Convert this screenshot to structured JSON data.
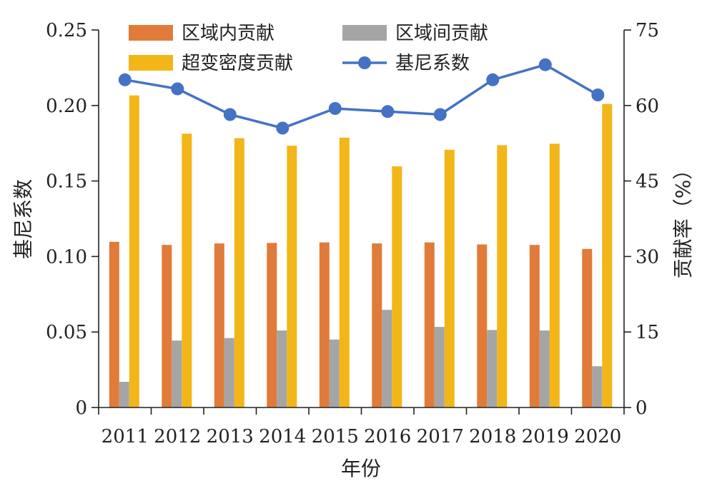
{
  "chart_data": {
    "type": "bar",
    "categories": [
      "2011",
      "2012",
      "2013",
      "2014",
      "2015",
      "2016",
      "2017",
      "2018",
      "2019",
      "2020"
    ],
    "series": [
      {
        "name": "区域内贡献",
        "axis": "right",
        "color": "#E07B39",
        "values": [
          32.9,
          32.3,
          32.6,
          32.7,
          32.8,
          32.6,
          32.8,
          32.4,
          32.3,
          31.5
        ]
      },
      {
        "name": "区域间贡献",
        "axis": "right",
        "color": "#A5A5A5",
        "values": [
          5.1,
          13.3,
          13.8,
          15.3,
          13.5,
          19.4,
          16.0,
          15.4,
          15.3,
          8.2
        ]
      },
      {
        "name": "超变密度贡献",
        "axis": "right",
        "color": "#F2B619",
        "values": [
          62.0,
          54.4,
          53.5,
          52.0,
          53.6,
          47.9,
          51.2,
          52.1,
          52.4,
          60.3
        ]
      },
      {
        "name": "基尼系数",
        "axis": "left",
        "type": "line",
        "color": "#4472C4",
        "values": [
          0.217,
          0.211,
          0.194,
          0.185,
          0.198,
          0.196,
          0.194,
          0.217,
          0.227,
          0.207
        ]
      }
    ],
    "xlabel": "年份",
    "ylabel": "基尼系数",
    "y2label": "贡献率（%）",
    "ylim": [
      0,
      0.25
    ],
    "y2lim": [
      0,
      75
    ],
    "yticks": [
      "0",
      "0.05",
      "0.10",
      "0.15",
      "0.20",
      "0.25"
    ],
    "y2ticks": [
      "0",
      "15",
      "30",
      "45",
      "60",
      "75"
    ],
    "grid": false,
    "legend": "top"
  }
}
